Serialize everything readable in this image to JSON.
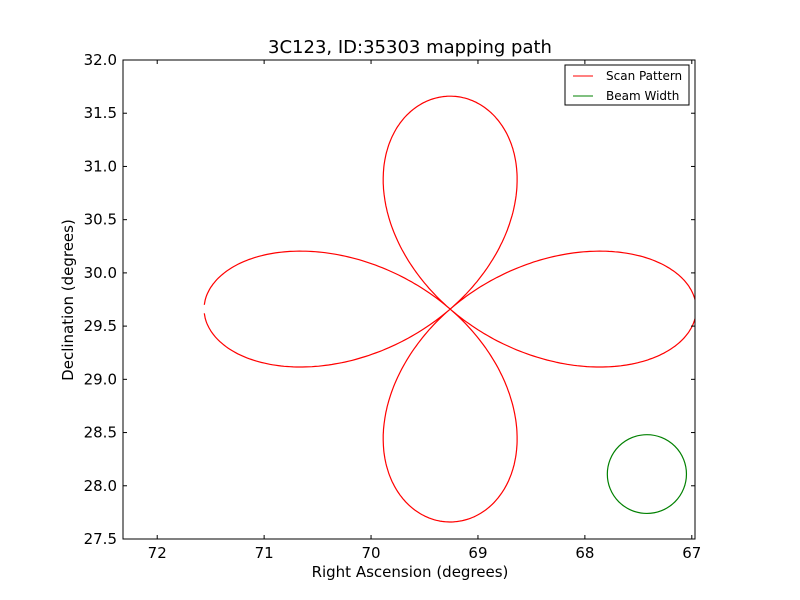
{
  "chart_data": {
    "type": "line",
    "title": "3C123, ID:35303 mapping path",
    "xlabel": "Right Ascension (degrees)",
    "ylabel": "Declination (degrees)",
    "xlim": [
      72.32,
      66.97
    ],
    "ylim": [
      27.5,
      32.0
    ],
    "x_inverted": true,
    "xticks": [
      "72",
      "71",
      "70",
      "69",
      "68",
      "67"
    ],
    "xtick_values": [
      72,
      71,
      70,
      69,
      68,
      67
    ],
    "yticks": [
      "27.5",
      "28.0",
      "28.5",
      "29.0",
      "29.5",
      "30.0",
      "30.5",
      "31.0",
      "31.5",
      "32.0"
    ],
    "ytick_values": [
      27.5,
      28.0,
      28.5,
      29.0,
      29.5,
      30.0,
      30.5,
      31.0,
      31.5,
      32.0
    ],
    "grid": false,
    "legend_position": "top-right",
    "series": [
      {
        "name": "Scan Pattern",
        "color": "#ff0000",
        "shape": "four-petal rose",
        "center": [
          69.26,
          29.66
        ],
        "petal_length_deg": 2.0,
        "ra_extent": [
          71.58,
          66.94
        ],
        "dec_extent": [
          27.67,
          31.67
        ]
      },
      {
        "name": "Beam Width",
        "color": "#008000",
        "shape": "circle",
        "center": [
          67.42,
          28.11
        ],
        "radius_deg": 0.37
      }
    ]
  }
}
